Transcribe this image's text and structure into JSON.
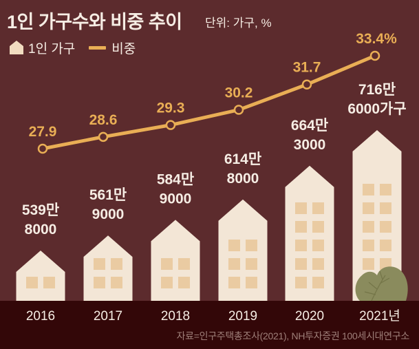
{
  "header": {
    "title": "1인 가구수와 비중 추이",
    "unit": "단위: 가구, %"
  },
  "legend": {
    "households_label": "1인 가구",
    "share_label": "비중"
  },
  "source": "자료=인구주택총조사(2021), NH투자증권 100세시대연구소",
  "colors": {
    "background": "#5C2B2D",
    "footer_band": "#330708",
    "building": "#F3E6D6",
    "window": "#EACBA2",
    "line": "#E9AE55",
    "text": "#F6EDE4",
    "tree": "#8A8B5D"
  },
  "chart_data": {
    "type": "bar+line",
    "title": "1인 가구수와 비중 추이",
    "unit": "단위: 가구, %",
    "categories": [
      "2016",
      "2017",
      "2018",
      "2019",
      "2020",
      "2021년"
    ],
    "series": [
      {
        "name": "1인 가구",
        "type": "bar",
        "values": [
          5398000,
          5619000,
          5849000,
          6148000,
          6643000,
          7166000
        ],
        "labels": [
          [
            "539만",
            "8000"
          ],
          [
            "561만",
            "9000"
          ],
          [
            "584만",
            "9000"
          ],
          [
            "614만",
            "8000"
          ],
          [
            "664만",
            "3000"
          ],
          [
            "716만",
            "6000가구"
          ]
        ],
        "window_rows": [
          1,
          2,
          2,
          3,
          5,
          6
        ]
      },
      {
        "name": "비중",
        "type": "line",
        "values": [
          27.9,
          28.6,
          29.3,
          30.2,
          31.7,
          33.4
        ],
        "labels": [
          "27.9",
          "28.6",
          "29.3",
          "30.2",
          "31.7",
          "33.4%"
        ]
      }
    ],
    "legend": "top-left",
    "grid": false
  }
}
